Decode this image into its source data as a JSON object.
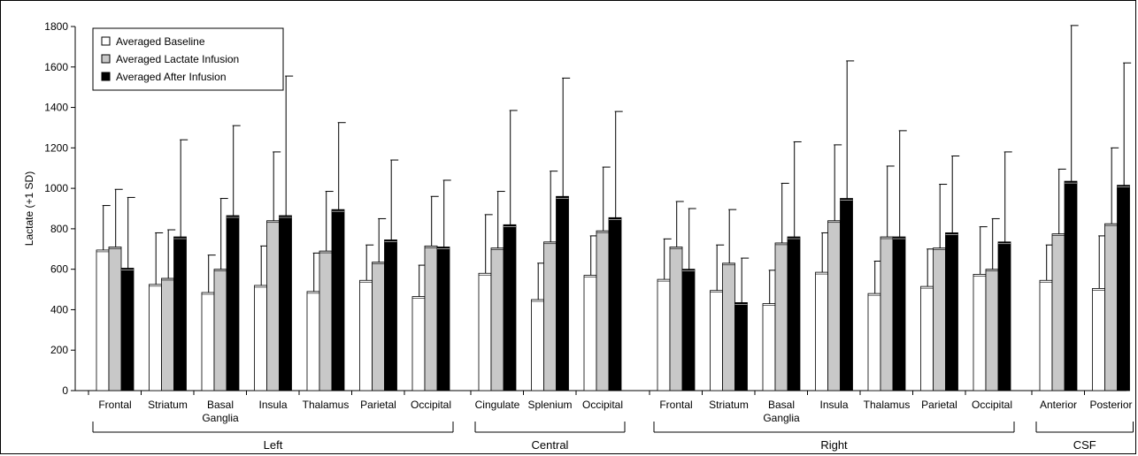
{
  "chart_data": {
    "type": "bar",
    "ylabel": "Lactate (+1 SD)",
    "ylim": [
      0,
      1800
    ],
    "yticks": [
      0,
      200,
      400,
      600,
      800,
      1000,
      1200,
      1400,
      1600,
      1800
    ],
    "legend_position": "top-left",
    "series_colors": [
      "#ffffff",
      "#c8c8c8",
      "#000000"
    ],
    "series": [
      {
        "name": "Averaged Baseline",
        "values": [
          695,
          525,
          485,
          520,
          490,
          545,
          465,
          580,
          450,
          570,
          550,
          495,
          430,
          585,
          480,
          515,
          575,
          545,
          505
        ],
        "sd": [
          915,
          780,
          670,
          715,
          680,
          720,
          620,
          870,
          630,
          765,
          750,
          720,
          595,
          780,
          640,
          700,
          810,
          720,
          765
        ]
      },
      {
        "name": "Averaged Lactate Infusion",
        "values": [
          710,
          555,
          600,
          840,
          690,
          635,
          715,
          705,
          735,
          790,
          710,
          630,
          730,
          840,
          760,
          705,
          600,
          775,
          825
        ],
        "sd": [
          995,
          795,
          950,
          1180,
          985,
          850,
          960,
          985,
          1085,
          1105,
          935,
          895,
          1025,
          1215,
          1110,
          1020,
          850,
          1095,
          1200
        ]
      },
      {
        "name": "Averaged After Infusion",
        "values": [
          605,
          760,
          865,
          865,
          895,
          745,
          710,
          820,
          960,
          855,
          600,
          435,
          760,
          950,
          760,
          780,
          735,
          1035,
          1015
        ],
        "sd": [
          955,
          1240,
          1310,
          1555,
          1325,
          1140,
          1040,
          1385,
          1545,
          1380,
          900,
          655,
          1230,
          1630,
          1285,
          1160,
          1180,
          1805,
          1620
        ]
      }
    ],
    "categories": [
      "Frontal",
      "Striatum",
      "Basal Ganglia",
      "Insula",
      "Thalamus",
      "Parietal",
      "Occipital",
      "Cingulate",
      "Splenium",
      "Occipital",
      "Frontal",
      "Striatum",
      "Basal Ganglia",
      "Insula",
      "Thalamus",
      "Parietal",
      "Occipital",
      "Anterior",
      "Posterior"
    ],
    "category_display": [
      [
        "Frontal"
      ],
      [
        "Striatum"
      ],
      [
        "Basal",
        "Ganglia"
      ],
      [
        "Insula"
      ],
      [
        "Thalamus"
      ],
      [
        "Parietal"
      ],
      [
        "Occipital"
      ],
      [
        "Cingulate"
      ],
      [
        "Splenium"
      ],
      [
        "Occipital"
      ],
      [
        "Frontal"
      ],
      [
        "Striatum"
      ],
      [
        "Basal",
        "Ganglia"
      ],
      [
        "Insula"
      ],
      [
        "Thalamus"
      ],
      [
        "Parietal"
      ],
      [
        "Occipital"
      ],
      [
        "Anterior"
      ],
      [
        "Posterior"
      ]
    ],
    "groups": [
      {
        "name": "Left",
        "count": 7
      },
      {
        "name": "Central",
        "count": 3
      },
      {
        "name": "Right",
        "count": 7
      },
      {
        "name": "CSF",
        "count": 2
      }
    ]
  }
}
